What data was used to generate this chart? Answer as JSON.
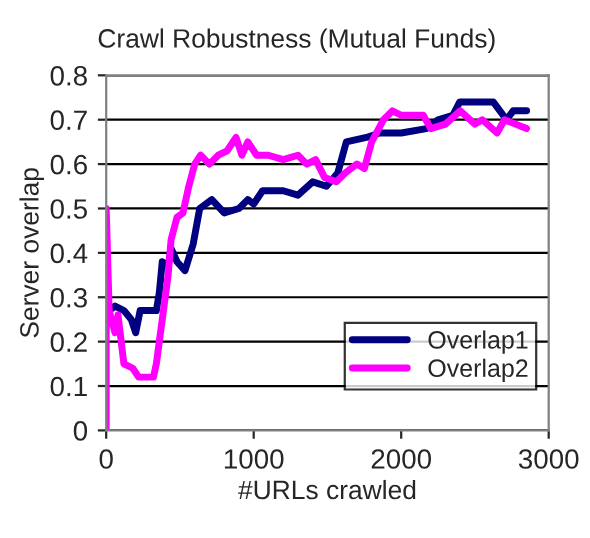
{
  "chart_data": {
    "type": "line",
    "title": "Crawl Robustness (Mutual Funds)",
    "xlabel": "#URLs crawled",
    "ylabel": "Server overlap",
    "xlim": [
      0,
      3000
    ],
    "xticks": [
      0,
      1000,
      2000,
      3000
    ],
    "ylim": [
      0,
      0.8
    ],
    "yticks": [
      0,
      0.1,
      0.2,
      0.3,
      0.4,
      0.5,
      0.6,
      0.7,
      0.8
    ],
    "grid": "y",
    "legend": "bottom right",
    "marker": "none",
    "line_style": "solid",
    "series": [
      {
        "name": "Overlap1",
        "color": "#000080",
        "x": [
          20,
          60,
          120,
          170,
          200,
          230,
          300,
          340,
          360,
          380,
          420,
          440,
          480,
          534,
          590,
          634,
          716,
          800,
          900,
          960,
          1000,
          1060,
          1200,
          1300,
          1400,
          1493,
          1570,
          1628,
          1764,
          1854,
          2000,
          2171,
          2250,
          2350,
          2397,
          2624,
          2714,
          2759,
          2850
        ],
        "values": [
          0.27,
          0.28,
          0.27,
          0.25,
          0.22,
          0.27,
          0.27,
          0.27,
          0.31,
          0.38,
          0.37,
          0.41,
          0.38,
          0.36,
          0.42,
          0.5,
          0.52,
          0.49,
          0.5,
          0.52,
          0.51,
          0.54,
          0.54,
          0.53,
          0.56,
          0.55,
          0.58,
          0.65,
          0.66,
          0.67,
          0.67,
          0.68,
          0.7,
          0.71,
          0.74,
          0.74,
          0.7,
          0.72,
          0.72
        ]
      },
      {
        "name": "Overlap2",
        "color": "#ff00ff",
        "x": [
          0,
          0,
          20,
          60,
          80,
          120,
          180,
          220,
          320,
          340,
          380,
          420,
          440,
          480,
          520,
          560,
          600,
          640,
          700,
          760,
          820,
          880,
          920,
          960,
          1020,
          1100,
          1200,
          1300,
          1360,
          1420,
          1480,
          1560,
          1620,
          1700,
          1750,
          1800,
          1880,
          1940,
          2000,
          2150,
          2200,
          2300,
          2400,
          2500,
          2550,
          2650,
          2700,
          2850
        ],
        "values": [
          0,
          0.5,
          0.27,
          0.22,
          0.26,
          0.15,
          0.14,
          0.12,
          0.12,
          0.15,
          0.25,
          0.35,
          0.43,
          0.48,
          0.49,
          0.55,
          0.6,
          0.62,
          0.6,
          0.62,
          0.63,
          0.66,
          0.62,
          0.65,
          0.62,
          0.62,
          0.61,
          0.62,
          0.6,
          0.61,
          0.57,
          0.56,
          0.58,
          0.6,
          0.59,
          0.65,
          0.7,
          0.72,
          0.71,
          0.71,
          0.68,
          0.69,
          0.72,
          0.69,
          0.7,
          0.67,
          0.7,
          0.68
        ]
      }
    ]
  }
}
